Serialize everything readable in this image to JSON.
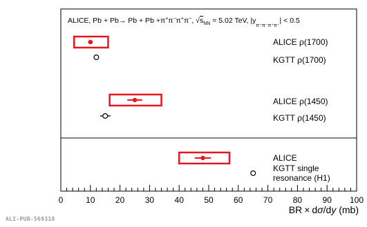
{
  "watermark": "ALI-PUB-569318",
  "chart_data": {
    "type": "scatter",
    "title": "ALICE, Pb + Pb→ Pb + Pb +π⁺π⁻π⁺π⁻, √s_NN = 5.02 TeV, |y_π⁺π⁻π⁺π⁻| < 0.5",
    "title_parts": {
      "head": "ALICE,  Pb + Pb→ Pb + Pb +π",
      "sqrt_s": "s",
      "nn": "NN",
      "energy": " = 5.02 TeV, |y",
      "rap_sub": "π⁺π⁻π⁺π⁻",
      "tail": "| < 0.5"
    },
    "xlabel": "BR × dσ/dy (mb)",
    "xlabel_parts": {
      "br": "BR",
      "times": "×",
      "d": "d",
      "sigma": "σ",
      "slash": "/d",
      "y": "y",
      "unit": " (mb)"
    },
    "xlim": [
      0,
      100
    ],
    "xticks": [
      "0",
      "10",
      "20",
      "30",
      "40",
      "50",
      "60",
      "70",
      "80",
      "90",
      "100"
    ],
    "grid": false,
    "groups": [
      {
        "points": [
          {
            "label": "ALICE ρ(1700)",
            "source": "ALICE",
            "x": 10,
            "stat": [
              9.2,
              10.8
            ],
            "syst": [
              4.5,
              16
            ]
          },
          {
            "label": "KGTT ρ(1700)",
            "source": "KGTT",
            "x": 12
          }
        ]
      },
      {
        "points": [
          {
            "label": "ALICE ρ(1450)",
            "source": "ALICE",
            "x": 25,
            "stat": [
              22.5,
              27.5
            ],
            "syst": [
              16.5,
              34
            ]
          },
          {
            "label": "KGTT ρ(1450)",
            "source": "KGTT",
            "x": 15,
            "stat": [
              13.3,
              16.8
            ]
          }
        ]
      },
      {
        "points": [
          {
            "label": "ALICE",
            "source": "ALICE",
            "x": 48,
            "stat": [
              45.3,
              50.7
            ],
            "syst": [
              40,
              57
            ]
          },
          {
            "label": "KGTT single resonance (H1)",
            "label_lines": [
              "KGTT single",
              "resonance (H1)"
            ],
            "source": "KGTT",
            "x": 65
          }
        ]
      }
    ],
    "colors": {
      "alice": "#e8141e",
      "kgtt": "#000000"
    }
  }
}
